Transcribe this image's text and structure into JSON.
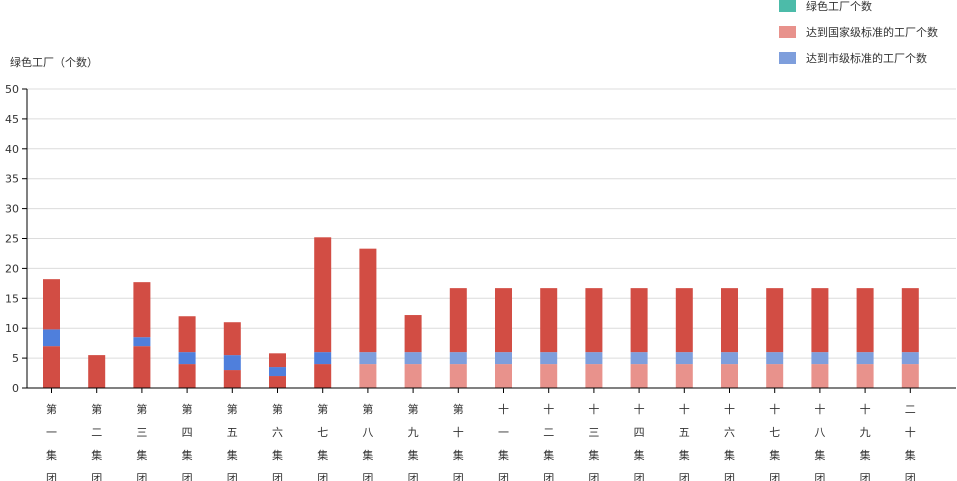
{
  "chart_data": {
    "type": "bar",
    "stacked": true,
    "ylabel": "绿色工厂（个数）",
    "ylim": [
      0,
      50
    ],
    "yticks": [
      0,
      5,
      10,
      15,
      20,
      25,
      30,
      35,
      40,
      45,
      50
    ],
    "grid": true,
    "legend_position": "top-right",
    "categories": [
      "第一集团",
      "第二集团",
      "第三集团",
      "第四集团",
      "第五集团",
      "第六集团",
      "第七集团",
      "第八集团",
      "第九集团",
      "第十集团",
      "十一集团",
      "十二集团",
      "十三集团",
      "十四集团",
      "十五集团",
      "十六集团",
      "十七集团",
      "十八集团",
      "十九集团",
      "二十集团"
    ],
    "series": [
      {
        "name": "达到国家级标准的工厂个数",
        "values": [
          7,
          0,
          7,
          4,
          3,
          2,
          4,
          4,
          4,
          4,
          4,
          4,
          4,
          4,
          4,
          4,
          4,
          4,
          4,
          4
        ],
        "colors_by_category": [
          "#d24d44",
          "#d24d44",
          "#d24d44",
          "#d24d44",
          "#d24d44",
          "#d24d44",
          "#d24d44",
          "#e8928c",
          "#e8928c",
          "#e8928c",
          "#e8928c",
          "#e8928c",
          "#e8928c",
          "#e8928c",
          "#e8928c",
          "#e8928c",
          "#e8928c",
          "#e8928c",
          "#e8928c",
          "#e8928c"
        ]
      },
      {
        "name": "达到市级标准的工厂个数",
        "values": [
          2.8,
          0,
          1.5,
          2,
          2.5,
          1.5,
          2,
          2,
          2,
          2,
          2,
          2,
          2,
          2,
          2,
          2,
          2,
          2,
          2,
          2
        ],
        "colors_by_category": [
          "#4f7fdc",
          "#4f7fdc",
          "#4f7fdc",
          "#4f7fdc",
          "#4f7fdc",
          "#4f7fdc",
          "#4f7fdc",
          "#7e9edc",
          "#7e9edc",
          "#7e9edc",
          "#7e9edc",
          "#7e9edc",
          "#7e9edc",
          "#7e9edc",
          "#7e9edc",
          "#7e9edc",
          "#7e9edc",
          "#7e9edc",
          "#7e9edc",
          "#7e9edc"
        ]
      },
      {
        "name": "",
        "values": [
          8.4,
          5.5,
          9.2,
          6,
          5.5,
          2.3,
          19.2,
          17.3,
          6.2,
          10.7,
          10.7,
          10.7,
          10.7,
          10.7,
          10.7,
          10.7,
          10.7,
          10.7,
          10.7,
          10.7
        ],
        "colors_by_category": [
          "#d24d44",
          "#d24d44",
          "#d24d44",
          "#d24d44",
          "#d24d44",
          "#d24d44",
          "#d24d44",
          "#d24d44",
          "#d24d44",
          "#d24d44",
          "#d24d44",
          "#d24d44",
          "#d24d44",
          "#d24d44",
          "#d24d44",
          "#d24d44",
          "#d24d44",
          "#d24d44",
          "#d24d44",
          "#d24d44"
        ]
      }
    ],
    "legend": [
      {
        "name": "绿色工厂个数",
        "color": "#4cbba9"
      },
      {
        "name": "达到国家级标准的工厂个数",
        "color": "#e8928c"
      },
      {
        "name": "达到市级标准的工厂个数",
        "color": "#7e9edc"
      }
    ]
  }
}
